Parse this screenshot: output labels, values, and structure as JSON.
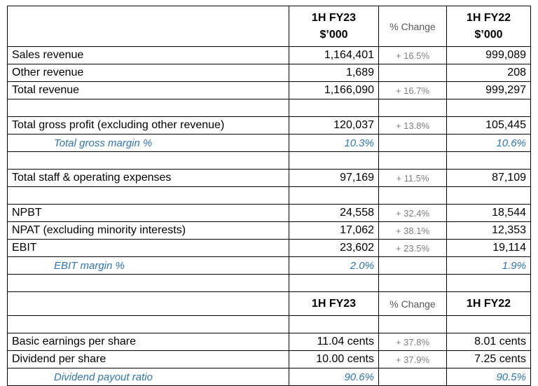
{
  "header": {
    "col1_line1": "1H FY23",
    "col1_line2": "$’000",
    "change": "% Change",
    "col3_line1": "1H FY22",
    "col3_line2": "$’000"
  },
  "rows": {
    "sales_revenue": {
      "label": "Sales revenue",
      "fy23": "1,164,401",
      "change": "+ 16.5%",
      "fy22": "999,089"
    },
    "other_revenue": {
      "label": "Other revenue",
      "fy23": "1,689",
      "change": "",
      "fy22": "208"
    },
    "total_revenue": {
      "label": "Total revenue",
      "fy23": "1,166,090",
      "change": "+ 16.7%",
      "fy22": "999,297"
    },
    "gross_profit": {
      "label": "Total gross profit (excluding other revenue)",
      "fy23": "120,037",
      "change": "+ 13.8%",
      "fy22": "105,445"
    },
    "gross_margin": {
      "label": "Total gross margin %",
      "fy23": "10.3%",
      "change": "",
      "fy22": "10.6%"
    },
    "staff_expenses": {
      "label": "Total staff & operating expenses",
      "fy23": "97,169",
      "change": "+ 11.5%",
      "fy22": "87,109"
    },
    "npbt": {
      "label": "NPBT",
      "fy23": "24,558",
      "change": "+ 32.4%",
      "fy22": "18,544"
    },
    "npat": {
      "label": "NPAT (excluding minority interests)",
      "fy23": "17,062",
      "change": "+ 38.1%",
      "fy22": "12,353"
    },
    "ebit": {
      "label": "EBIT",
      "fy23": "23,602",
      "change": "+ 23.5%",
      "fy22": "19,114"
    },
    "ebit_margin": {
      "label": "EBIT margin %",
      "fy23": "2.0%",
      "change": "",
      "fy22": "1.9%"
    }
  },
  "header2": {
    "col1": "1H FY23",
    "change": "% Change",
    "col3": "1H FY22"
  },
  "rows2": {
    "eps": {
      "label": "Basic earnings per share",
      "fy23": "11.04 cents",
      "change": "+ 37.8%",
      "fy22": "8.01 cents"
    },
    "dps": {
      "label": "Dividend per share",
      "fy23": "10.00 cents",
      "change": "+ 37.9%",
      "fy22": "7.25 cents"
    },
    "payout": {
      "label": "Dividend payout ratio",
      "fy23": "90.6%",
      "change": "",
      "fy22": "90.5%"
    }
  },
  "colors": {
    "sub_row_text": "#2e75b6",
    "change_text": "#7f7f7f"
  }
}
